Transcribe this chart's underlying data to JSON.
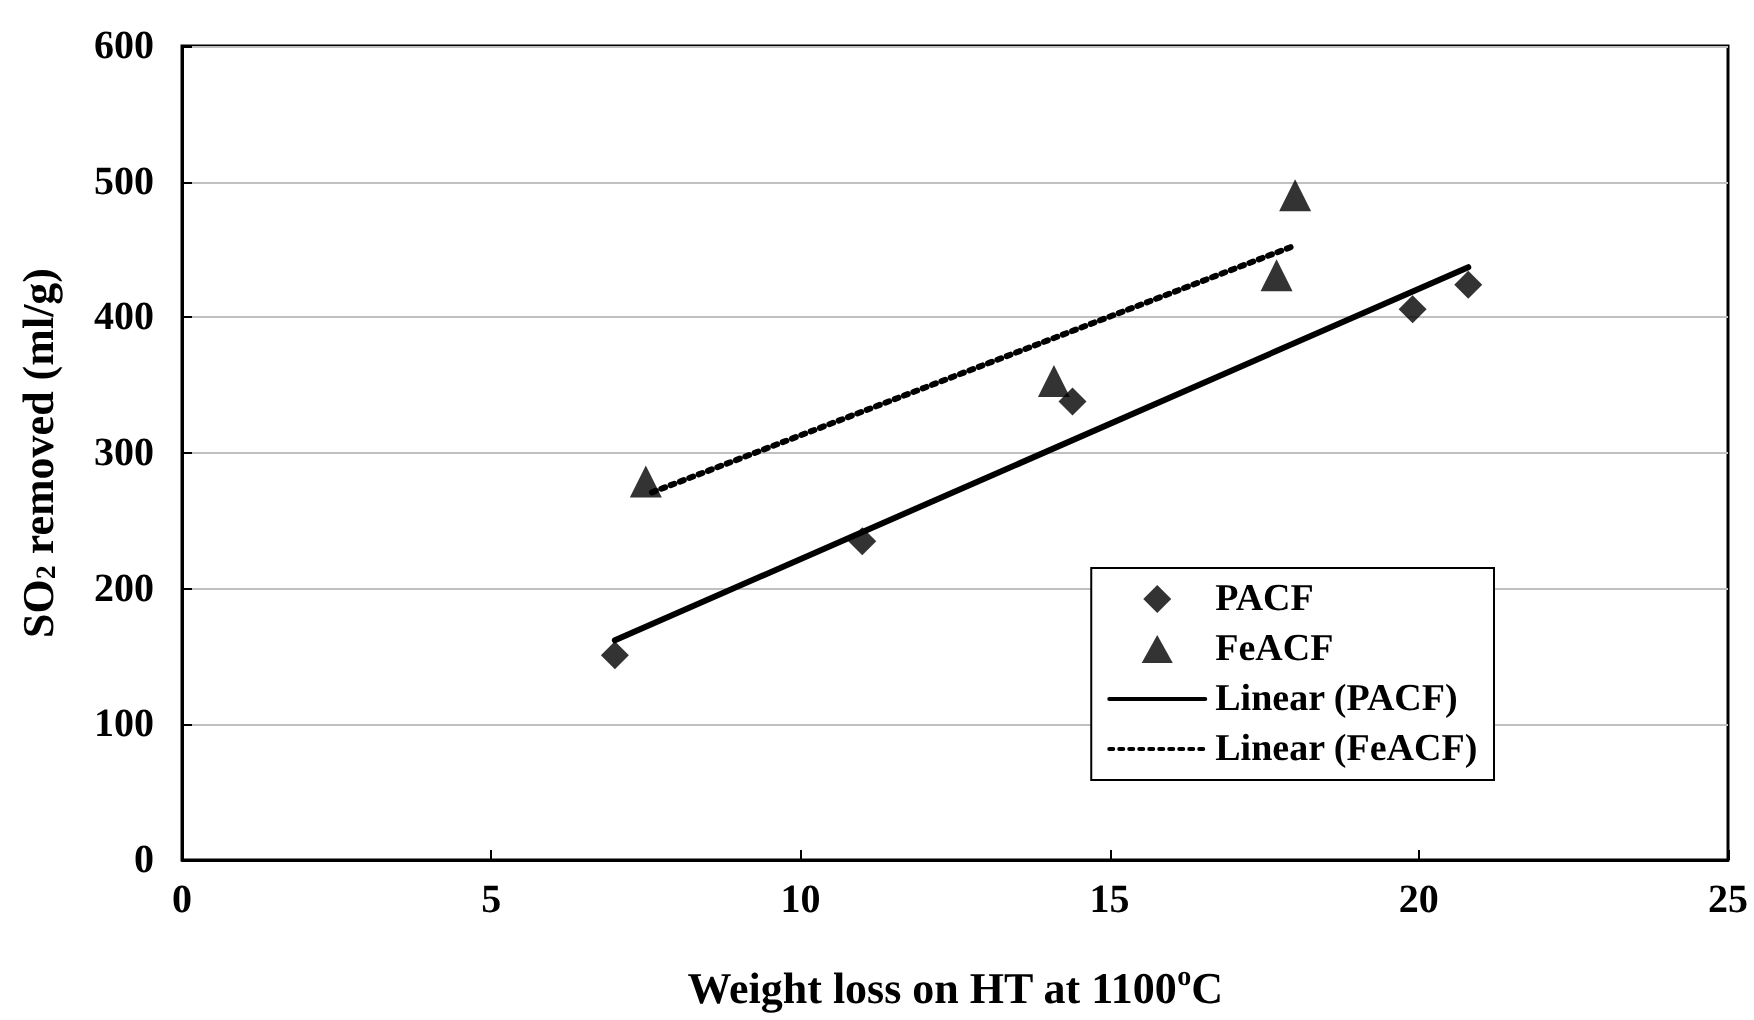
{
  "chart_data": {
    "type": "scatter",
    "xlabel": "Weight loss on HT at 1100$^{o}$C",
    "ylabel": "SO$_{2}$ removed (ml/g)",
    "xlim": [
      0,
      25
    ],
    "xticks": [
      0,
      5,
      10,
      15,
      20,
      25
    ],
    "ylim": [
      0,
      600
    ],
    "yticks": [
      0,
      100,
      200,
      300,
      400,
      500,
      600
    ],
    "grid": "y",
    "legend": "bottom right",
    "series": [
      {
        "name": "PACF",
        "marker": "diamond",
        "color": "#000000",
        "x": [
          7.0,
          11.0,
          14.4,
          19.9,
          20.8
        ],
        "values": [
          151,
          235,
          338,
          406,
          424
        ]
      },
      {
        "name": "FeACF",
        "marker": "triangle",
        "color": "#000000",
        "x": [
          7.5,
          14.1,
          17.7,
          18.0
        ],
        "values": [
          279,
          353,
          431,
          490
        ]
      },
      {
        "name": "Linear (PACF)",
        "type": "line",
        "line_style": "solid",
        "color": "#000000",
        "x": [
          7.0,
          20.8
        ],
        "values": [
          162,
          437
        ]
      },
      {
        "name": "Linear (FeACF)",
        "type": "line",
        "line_style": "dotted",
        "color": "#000000",
        "x": [
          7.6,
          18.0
        ],
        "values": [
          271,
          453
        ]
      }
    ]
  }
}
